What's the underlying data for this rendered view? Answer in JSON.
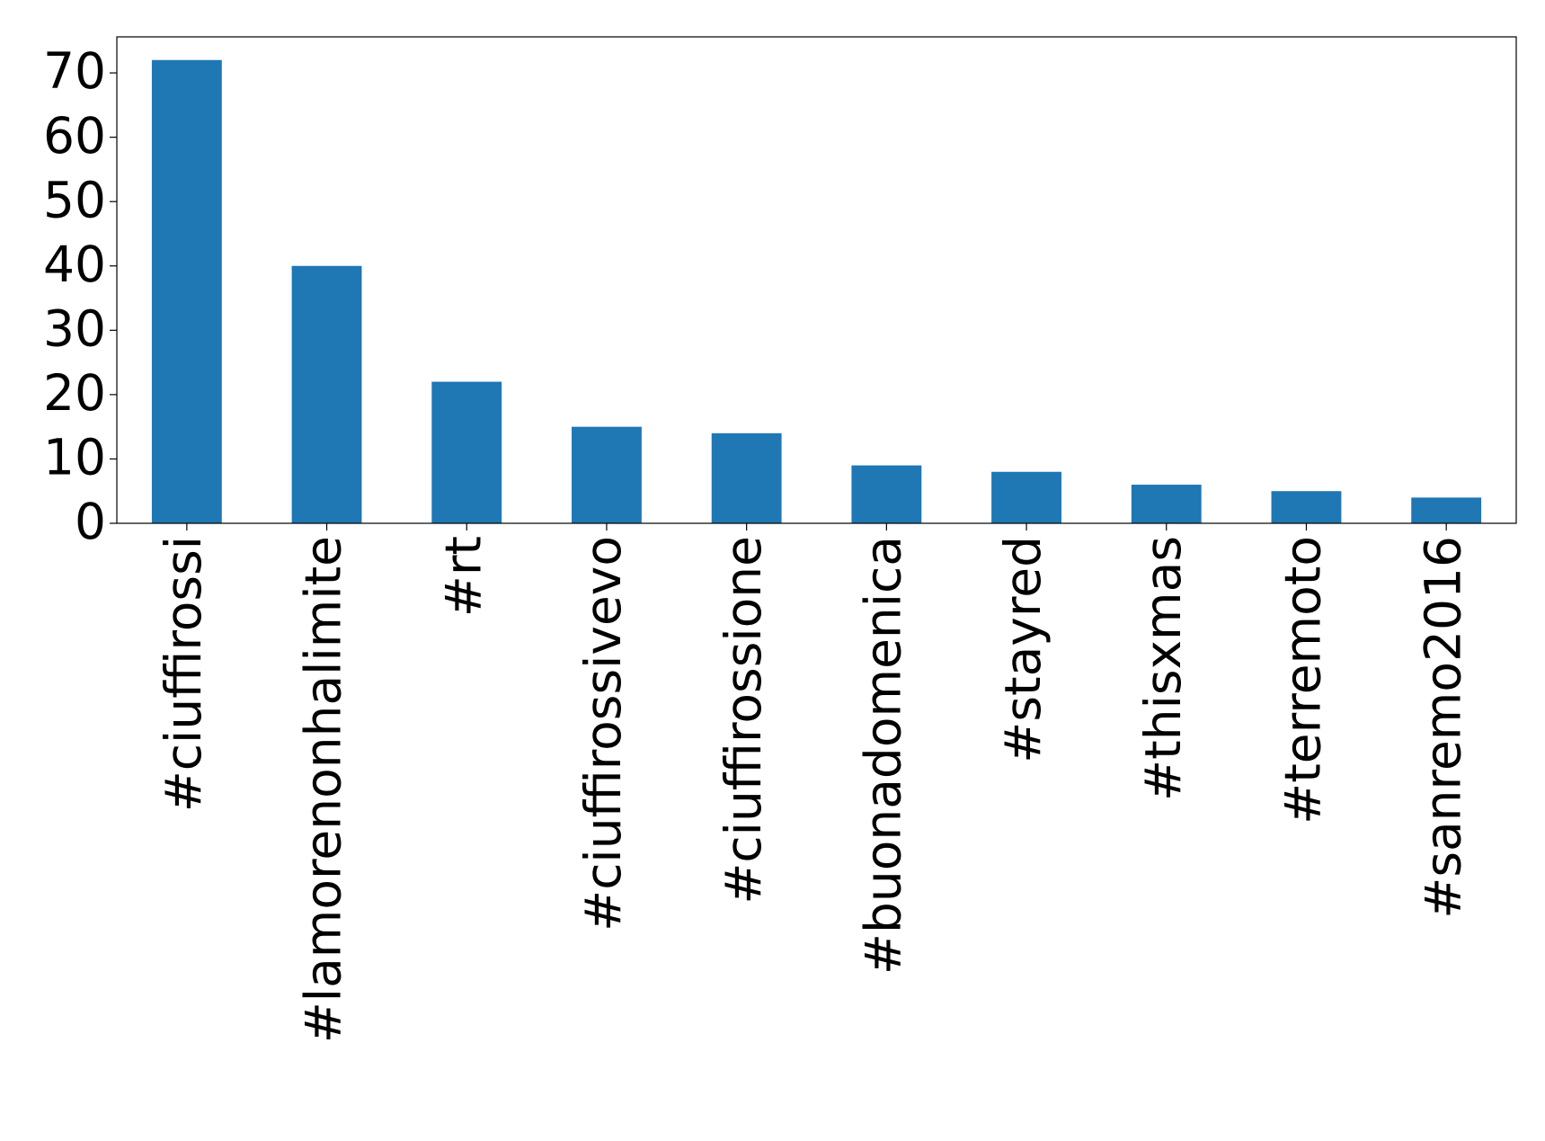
{
  "chart_data": {
    "type": "bar",
    "categories": [
      "#ciuffirossi",
      "#lamorenonhalimite",
      "#rt",
      "#ciuffirossivevo",
      "#ciuffirossione",
      "#buonadomenica",
      "#stayred",
      "#thisxmas",
      "#terremoto",
      "#sanremo2016"
    ],
    "values": [
      72,
      40,
      22,
      15,
      14,
      9,
      8,
      6,
      5,
      4
    ],
    "color": "#1f77b4",
    "ylim": [
      0,
      75.6
    ],
    "yticks": [
      0,
      10,
      20,
      30,
      40,
      50,
      60,
      70
    ],
    "grid": false
  }
}
